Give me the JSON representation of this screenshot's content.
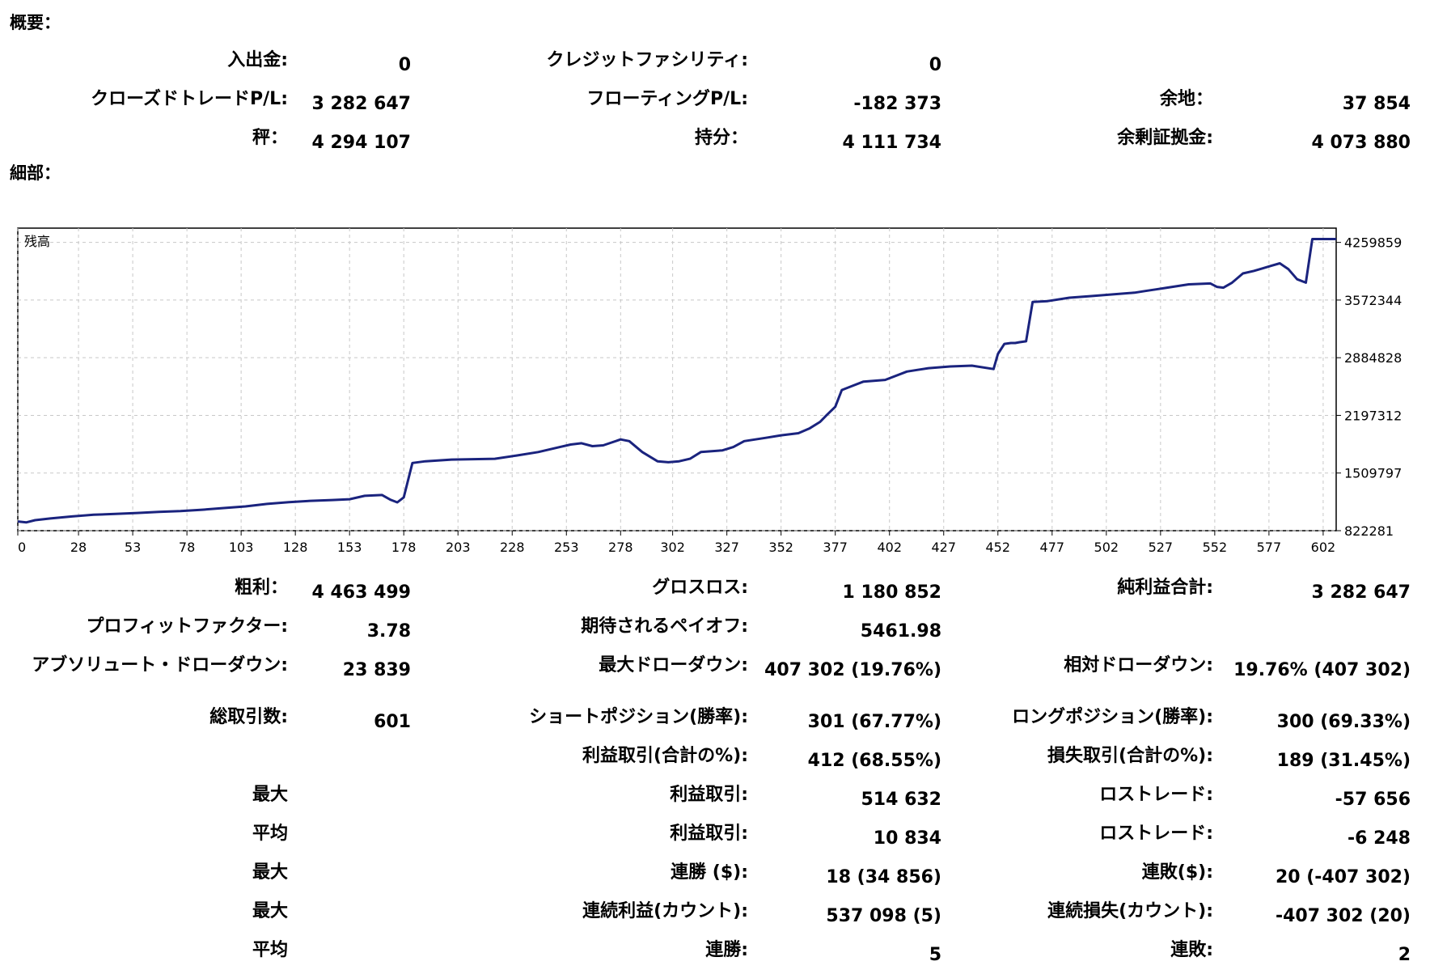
{
  "summary": {
    "title": "概要：",
    "rows": [
      [
        {
          "label": "入出金:",
          "value": "0"
        },
        {
          "label": "クレジットファシリティ:",
          "value": "0"
        },
        {
          "label": "",
          "value": ""
        }
      ],
      [
        {
          "label": "クローズドトレードP/L:",
          "value": "3 282 647"
        },
        {
          "label": "フローティングP/L:",
          "value": "-182 373"
        },
        {
          "label": "余地：",
          "value": "37 854"
        }
      ],
      [
        {
          "label": "秤：",
          "value": "4 294 107"
        },
        {
          "label": "持分：",
          "value": "4 111 734"
        },
        {
          "label": "余剰証拠金:",
          "value": "4 073 880"
        }
      ]
    ]
  },
  "details": {
    "title": "細部：",
    "rows": [
      [
        {
          "label": "粗利：",
          "value": "4 463 499"
        },
        {
          "label": "グロスロス:",
          "value": "1 180 852"
        },
        {
          "label": "純利益合計:",
          "value": "3 282 647"
        }
      ],
      [
        {
          "label": "プロフィットファクター:",
          "value": "3.78"
        },
        {
          "label": "期待されるペイオフ:",
          "value": "5461.98"
        },
        {
          "label": "",
          "value": ""
        }
      ],
      [
        {
          "label": "アブソリュート・ドローダウン:",
          "value": "23 839"
        },
        {
          "label": "最大ドローダウン:",
          "value": "407 302 (19.76%)"
        },
        {
          "label": "相対ドローダウン:",
          "value": "19.76% (407 302)"
        }
      ],
      [
        {
          "label": "総取引数:",
          "value": "601"
        },
        {
          "label": "ショートポジション(勝率):",
          "value": "301 (67.77%)"
        },
        {
          "label": "ロングポジション(勝率):",
          "value": "300 (69.33%)"
        }
      ],
      [
        {
          "label": "",
          "value": ""
        },
        {
          "label": "利益取引(合計の%):",
          "value": "412 (68.55%)"
        },
        {
          "label": "損失取引(合計の%):",
          "value": "189 (31.45%)"
        }
      ],
      [
        {
          "label": "最大",
          "value": ""
        },
        {
          "label": "利益取引:",
          "value": "514 632"
        },
        {
          "label": "ロストレード:",
          "value": "-57 656"
        }
      ],
      [
        {
          "label": "平均",
          "value": ""
        },
        {
          "label": "利益取引:",
          "value": "10 834"
        },
        {
          "label": "ロストレード:",
          "value": "-6 248"
        }
      ],
      [
        {
          "label": "最大",
          "value": ""
        },
        {
          "label": "連勝 ($):",
          "value": "18 (34 856)"
        },
        {
          "label": "連敗($):",
          "value": "20 (-407 302)"
        }
      ],
      [
        {
          "label": "最大",
          "value": ""
        },
        {
          "label": "連続利益(カウント):",
          "value": "537 098 (5)"
        },
        {
          "label": "連続損失(カウント):",
          "value": "-407 302 (20)"
        }
      ],
      [
        {
          "label": "平均",
          "value": ""
        },
        {
          "label": "連勝:",
          "value": "5"
        },
        {
          "label": "連敗:",
          "value": "2"
        }
      ]
    ]
  },
  "chart_data": {
    "type": "line",
    "title": "残高",
    "x_ticks": [
      0,
      28,
      53,
      78,
      103,
      128,
      153,
      178,
      203,
      228,
      253,
      278,
      302,
      327,
      352,
      377,
      402,
      427,
      452,
      477,
      502,
      527,
      552,
      577,
      602
    ],
    "y_ticks": [
      822281,
      1509797,
      2197312,
      2884828,
      3572344,
      4259859
    ],
    "xlim": [
      0,
      608
    ],
    "ylim": [
      822281,
      4430000
    ],
    "grid": true,
    "line_color": "#1a237e",
    "series": [
      {
        "x": [
          0,
          4,
          8,
          15,
          25,
          35,
          45,
          55,
          65,
          75,
          85,
          95,
          105,
          115,
          125,
          135,
          145,
          153,
          160,
          168,
          172,
          175,
          178,
          182,
          188,
          200,
          220,
          230,
          240,
          250,
          255,
          260,
          265,
          270,
          278,
          282,
          288,
          295,
          300,
          305,
          310,
          315,
          320,
          325,
          330,
          335,
          345,
          352,
          360,
          365,
          370,
          373,
          377,
          380,
          385,
          390,
          400,
          410,
          415,
          420,
          430,
          440,
          450,
          452,
          455,
          458,
          460,
          462,
          465,
          468,
          475,
          485,
          495,
          505,
          515,
          520,
          525,
          530,
          540,
          550,
          553,
          556,
          560,
          565,
          570,
          574,
          578,
          582,
          586,
          590,
          594,
          597,
          602,
          608
        ],
        "y": [
          932000,
          922000,
          948000,
          968000,
          992000,
          1012000,
          1022000,
          1034000,
          1046000,
          1056000,
          1072000,
          1092000,
          1112000,
          1142000,
          1162000,
          1178000,
          1188000,
          1198000,
          1238000,
          1248000,
          1190000,
          1160000,
          1220000,
          1630000,
          1650000,
          1670000,
          1680000,
          1718000,
          1760000,
          1820000,
          1850000,
          1865000,
          1830000,
          1840000,
          1910000,
          1890000,
          1760000,
          1650000,
          1638000,
          1650000,
          1680000,
          1760000,
          1770000,
          1780000,
          1820000,
          1890000,
          1930000,
          1960000,
          1985000,
          2040000,
          2120000,
          2200000,
          2300000,
          2500000,
          2550000,
          2600000,
          2620000,
          2720000,
          2740000,
          2760000,
          2780000,
          2790000,
          2750000,
          2930000,
          3050000,
          3060000,
          3060000,
          3070000,
          3080000,
          3550000,
          3560000,
          3600000,
          3620000,
          3640000,
          3660000,
          3680000,
          3700000,
          3720000,
          3760000,
          3770000,
          3730000,
          3720000,
          3780000,
          3890000,
          3920000,
          3950000,
          3980000,
          4010000,
          3940000,
          3820000,
          3780000,
          4300000,
          4300000,
          4300000
        ]
      }
    ]
  }
}
